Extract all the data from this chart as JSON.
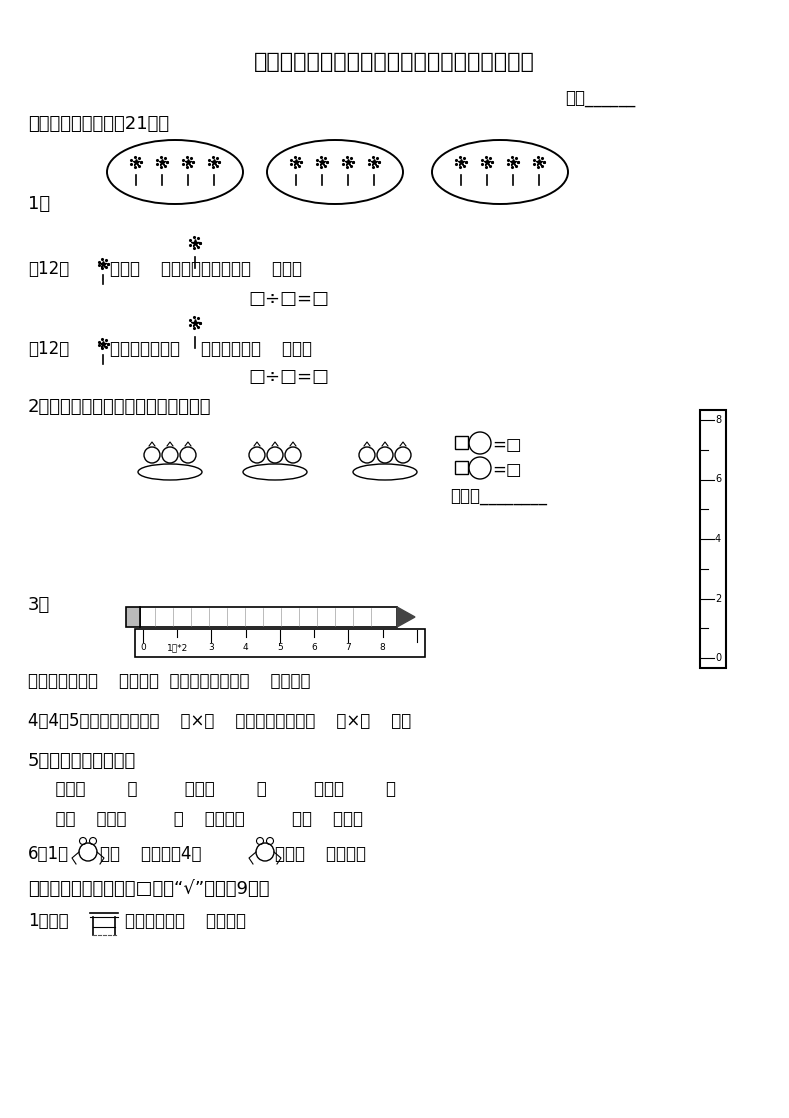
{
  "title": "苏教版国标本小学二年级数学（上册）期中练习",
  "background_color": "#ffffff",
  "score_line": "得分______",
  "sec1": "一、看图填空。（共21分）",
  "item1_q1": "\u000112朵，每（    ）朵一份，分成了（    ）份。",
  "item1_eq1": "□÷□=□",
  "item1_q2": "\u000212朵，平均分成了（    ）份，每份（    ）朵。",
  "item1_eq2": "□÷□=□",
  "item2_label": "2、看图写出两道算式，并写出口诀。",
  "item2_eq1": "□    ○=□",
  "item2_eq2": "□    ○=□",
  "item2_kouji": "口诀：________",
  "item3_label": "3、",
  "item3_q": "上图中铅笔长（    ）厘米。  右图中铁钉长约（    ）厘米。",
  "item4_q": "4、4个5相加，可以写作（    ）×（    ），也可以写作（    ）×（    ）。",
  "item5_label": "5、把口诀补充完整。",
  "item5_row1": "  二四（        ）         三五（        ）         四六（        ）",
  "item5_row2": "  二（    ）一十         （    ）三得六         三（    ）十二",
  "item6_q1": "6、1只",
  "item6_q2": "有（    ）只脚，4只",
  "item6_q3": "共有（    ）只脚。",
  "sec2": "二、请在正确答案后的□里画“√”。（共9分）",
  "item_sec2_1": "1、我家",
  "item_sec2_1b": "的高度约是（    ）厘米。"
}
